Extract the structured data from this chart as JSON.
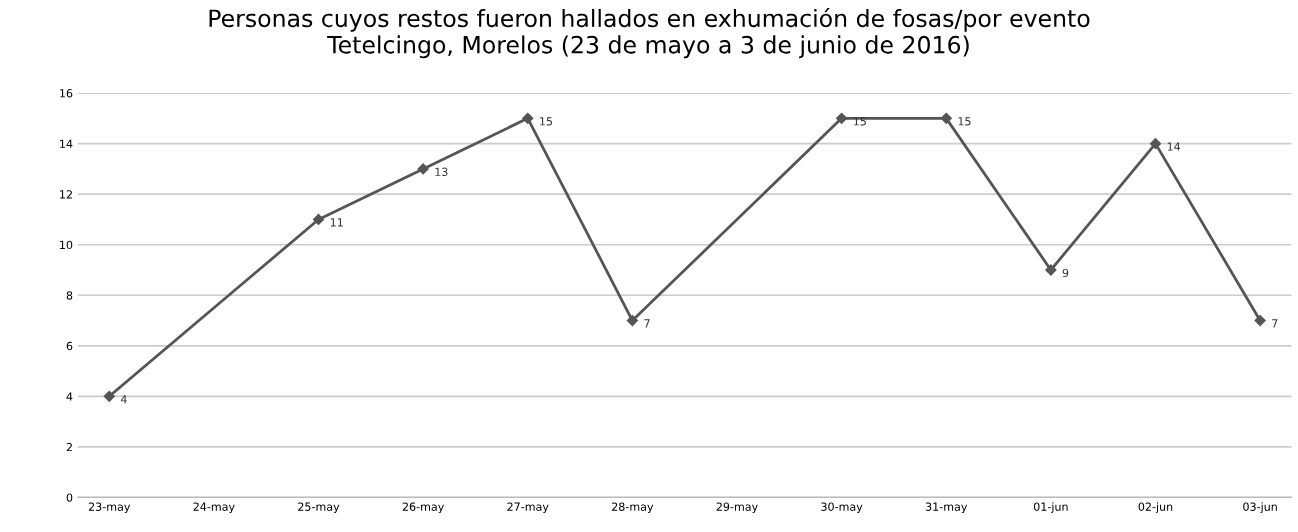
{
  "chart_data": {
    "type": "line",
    "title": "Personas cuyos restos fueron hallados en exhumación de fosas/por evento\nTetelcingo, Morelos (23 de mayo a 3 de junio de 2016)",
    "categories": [
      "23-may",
      "24-may",
      "25-may",
      "26-may",
      "27-may",
      "28-may",
      "29-may",
      "30-may",
      "31-may",
      "01-jun",
      "02-jun",
      "03-jun"
    ],
    "series": [
      {
        "color": "#555555",
        "values": [
          4,
          null,
          11,
          13,
          15,
          7,
          null,
          15,
          15,
          9,
          14,
          7
        ]
      }
    ],
    "ylim": [
      0,
      16
    ],
    "yticks": [
      0,
      2,
      4,
      6,
      8,
      10,
      12,
      14,
      16
    ],
    "grid": "y",
    "marker": "diamond",
    "line_style": "solid",
    "data_labels": true
  }
}
